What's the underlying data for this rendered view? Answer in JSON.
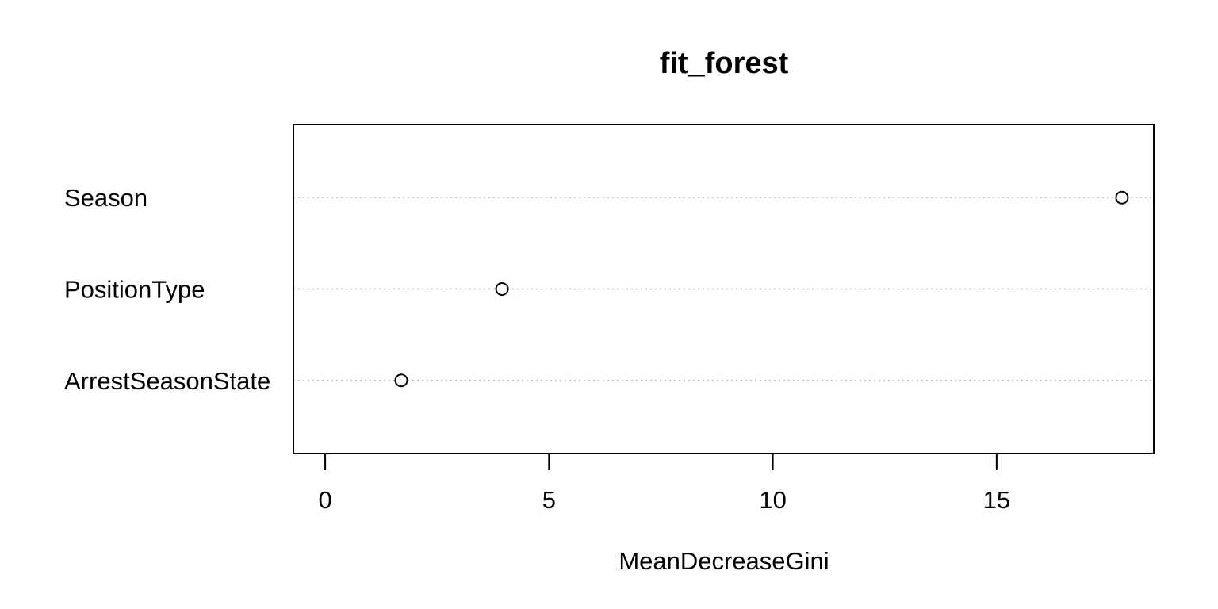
{
  "chart_data": {
    "type": "scatter",
    "title": "fit_forest",
    "xlabel": "MeanDecreaseGini",
    "ylabel": "",
    "categories": [
      "Season",
      "PositionType",
      "ArrestSeasonState"
    ],
    "values": [
      17.8,
      3.95,
      1.7
    ],
    "x_ticks": [
      0,
      5,
      10,
      15
    ],
    "xlim": [
      -0.71,
      18.51
    ],
    "grid": "dotted horizontal lines per category",
    "legend": "none",
    "colors": {
      "point_stroke": "#000000",
      "gridline": "#bebebe",
      "axis": "#000000"
    }
  }
}
